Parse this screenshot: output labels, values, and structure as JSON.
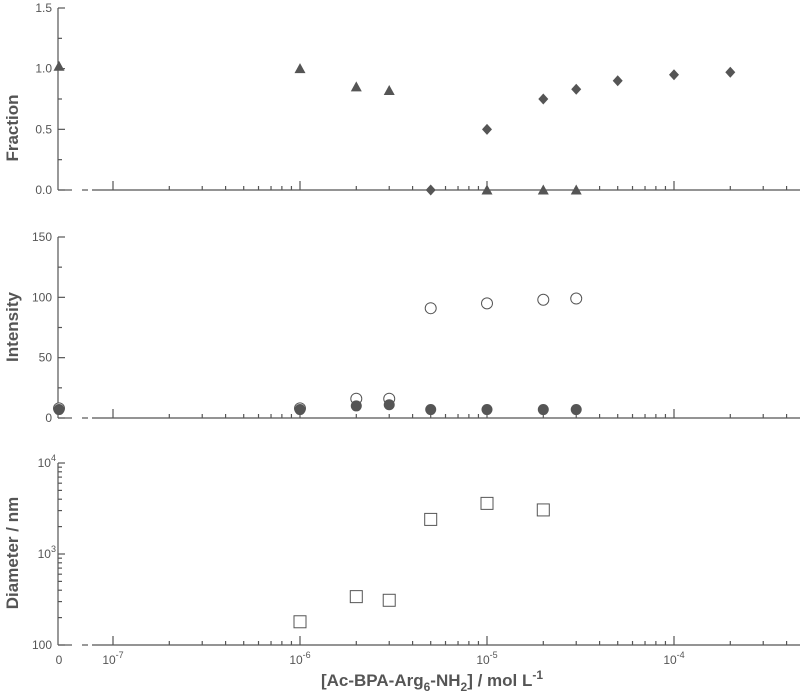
{
  "chart_data": [
    {
      "type": "scatter",
      "panel": "top",
      "ylabel": "Fraction",
      "ylim": [
        0,
        1.5
      ],
      "yticks": [
        "0.0",
        "0.5",
        "1.0",
        "1.5"
      ],
      "xscale": "log",
      "grid": false,
      "series": [
        {
          "marker": "triangle-filled",
          "color": "#555555",
          "points": [
            {
              "x": 0,
              "y": 1.02
            },
            {
              "x": 1e-06,
              "y": 1.0
            },
            {
              "x": 2e-06,
              "y": 0.85
            },
            {
              "x": 3e-06,
              "y": 0.82
            },
            {
              "x": 1e-05,
              "y": 0.0
            },
            {
              "x": 2e-05,
              "y": 0.0
            },
            {
              "x": 3e-05,
              "y": 0.0
            }
          ]
        },
        {
          "marker": "diamond-filled",
          "color": "#555555",
          "points": [
            {
              "x": 5e-06,
              "y": 0.0
            },
            {
              "x": 1e-05,
              "y": 0.5
            },
            {
              "x": 2e-05,
              "y": 0.75
            },
            {
              "x": 3e-05,
              "y": 0.83
            },
            {
              "x": 5e-05,
              "y": 0.9
            },
            {
              "x": 0.0001,
              "y": 0.95
            },
            {
              "x": 0.0002,
              "y": 0.97
            }
          ]
        }
      ]
    },
    {
      "type": "scatter",
      "panel": "middle",
      "ylabel": "Intensity",
      "ylim": [
        0,
        150
      ],
      "yticks": [
        "0",
        "50",
        "100",
        "150"
      ],
      "xscale": "log",
      "grid": false,
      "series": [
        {
          "marker": "circle-open",
          "color": "#555555",
          "points": [
            {
              "x": 0,
              "y": 8
            },
            {
              "x": 1e-06,
              "y": 8
            },
            {
              "x": 2e-06,
              "y": 16
            },
            {
              "x": 3e-06,
              "y": 16
            },
            {
              "x": 5e-06,
              "y": 91
            },
            {
              "x": 1e-05,
              "y": 95
            },
            {
              "x": 2e-05,
              "y": 98
            },
            {
              "x": 3e-05,
              "y": 99
            }
          ]
        },
        {
          "marker": "circle-filled",
          "color": "#555555",
          "points": [
            {
              "x": 0,
              "y": 7
            },
            {
              "x": 1e-06,
              "y": 7
            },
            {
              "x": 2e-06,
              "y": 10
            },
            {
              "x": 3e-06,
              "y": 11
            },
            {
              "x": 5e-06,
              "y": 7
            },
            {
              "x": 1e-05,
              "y": 7
            },
            {
              "x": 2e-05,
              "y": 7
            },
            {
              "x": 3e-05,
              "y": 7
            }
          ]
        }
      ]
    },
    {
      "type": "scatter",
      "panel": "bottom",
      "ylabel": "Diameter / nm",
      "yscale": "log",
      "ylim": [
        100,
        10000
      ],
      "yticks": [
        {
          "base": "100",
          "exp": ""
        },
        {
          "base": "10",
          "exp": "3"
        },
        {
          "base": "10",
          "exp": "4"
        }
      ],
      "xscale": "log",
      "grid": false,
      "xlabel": {
        "pre": "[Ac-BPA-Arg",
        "sub1": "6",
        "mid": "-NH",
        "sub2": "2",
        "post": "] / mol L",
        "sup": "-1"
      },
      "xticks": [
        {
          "base": "0",
          "exp": ""
        },
        {
          "base": "10",
          "exp": "-7"
        },
        {
          "base": "10",
          "exp": "-6"
        },
        {
          "base": "10",
          "exp": "-5"
        },
        {
          "base": "10",
          "exp": "-4"
        }
      ],
      "series": [
        {
          "marker": "square-open",
          "color": "#555555",
          "points": [
            {
              "x": 1e-06,
              "y": 180
            },
            {
              "x": 2e-06,
              "y": 340
            },
            {
              "x": 3e-06,
              "y": 310
            },
            {
              "x": 5e-06,
              "y": 2400
            },
            {
              "x": 1e-05,
              "y": 3600
            },
            {
              "x": 2e-05,
              "y": 3050
            }
          ]
        }
      ]
    }
  ]
}
